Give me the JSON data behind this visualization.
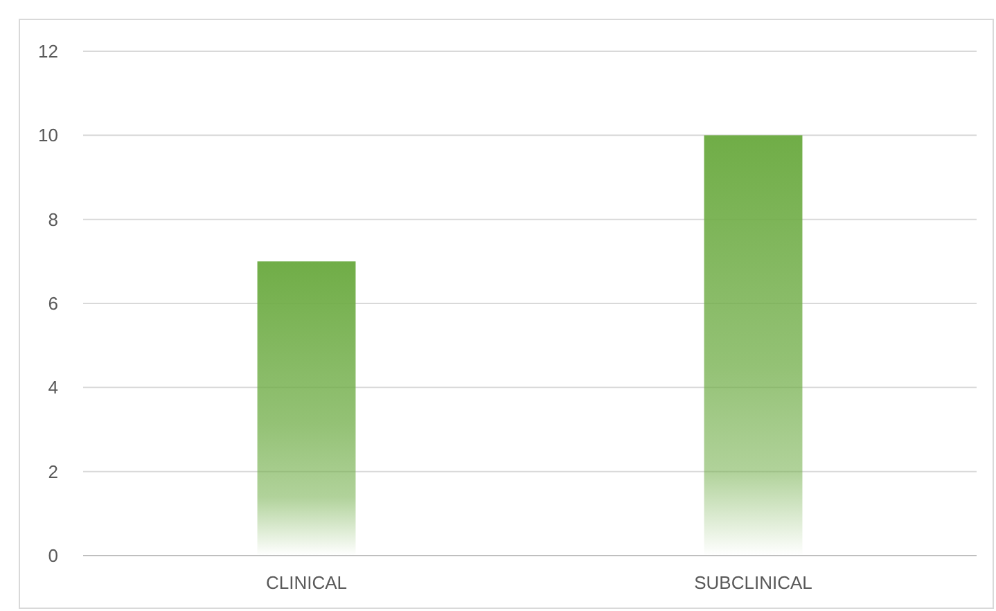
{
  "chart_data": {
    "type": "bar",
    "categories": [
      "CLINICAL",
      "SUBCLINICAL"
    ],
    "values": [
      7,
      10
    ],
    "color": "#70ad47",
    "ylim": [
      0,
      12
    ],
    "yticks": [
      0,
      2,
      4,
      6,
      8,
      10,
      12
    ],
    "grid": "y"
  }
}
